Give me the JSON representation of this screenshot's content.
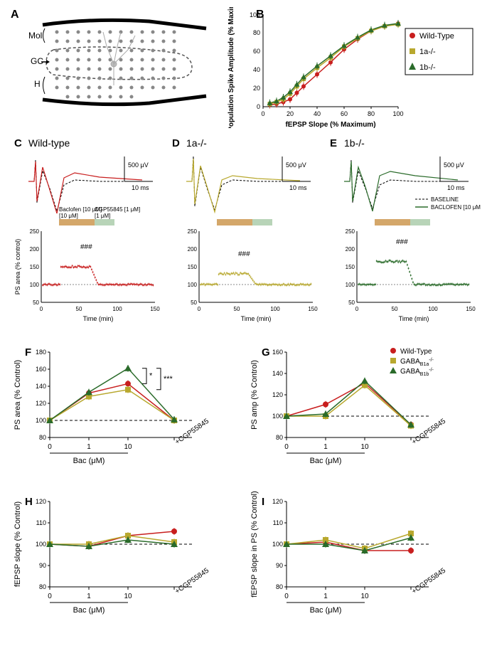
{
  "panelA": {
    "label": "A",
    "regions": [
      "Mol",
      "GC",
      "H"
    ]
  },
  "panelB": {
    "label": "B",
    "type": "scatter",
    "xlabel": "fEPSP Slope (% Maximum)",
    "ylabel": "Population Spike Amplitude (% Maximum)",
    "xlim": [
      0,
      100
    ],
    "ylim": [
      0,
      100
    ],
    "xtick_step": 20,
    "ytick_step": 20,
    "series": [
      {
        "name": "Wild-Type",
        "color": "#c81e1e",
        "marker": "circle",
        "data": [
          [
            5,
            2
          ],
          [
            10,
            3
          ],
          [
            15,
            5
          ],
          [
            20,
            8
          ],
          [
            25,
            15
          ],
          [
            30,
            22
          ],
          [
            40,
            35
          ],
          [
            50,
            48
          ],
          [
            60,
            62
          ],
          [
            70,
            73
          ],
          [
            80,
            82
          ],
          [
            90,
            87
          ],
          [
            100,
            90
          ]
        ]
      },
      {
        "name": "1a-/-",
        "color": "#b8a82e",
        "marker": "square",
        "data": [
          [
            5,
            3
          ],
          [
            10,
            5
          ],
          [
            15,
            8
          ],
          [
            20,
            14
          ],
          [
            25,
            22
          ],
          [
            30,
            30
          ],
          [
            40,
            42
          ],
          [
            50,
            53
          ],
          [
            60,
            65
          ],
          [
            70,
            74
          ],
          [
            80,
            82
          ],
          [
            90,
            87
          ],
          [
            100,
            89
          ]
        ]
      },
      {
        "name": "1b-/-",
        "color": "#2a6b2a",
        "marker": "triangle",
        "data": [
          [
            5,
            4
          ],
          [
            10,
            6
          ],
          [
            15,
            10
          ],
          [
            20,
            16
          ],
          [
            25,
            24
          ],
          [
            30,
            32
          ],
          [
            40,
            44
          ],
          [
            50,
            55
          ],
          [
            60,
            66
          ],
          [
            70,
            75
          ],
          [
            80,
            83
          ],
          [
            90,
            88
          ],
          [
            100,
            90
          ]
        ]
      }
    ]
  },
  "panelsCDE": {
    "C": {
      "label": "C",
      "title": "Wild-type",
      "color": "#c81e1e"
    },
    "D": {
      "label": "D",
      "title": "1a-/-",
      "color": "#b8a82e"
    },
    "E": {
      "label": "E",
      "title": "1b-/-",
      "color": "#2a6b2a"
    },
    "trace_legend": [
      "BASELINE",
      "BACLOFEN [10 μM]"
    ],
    "scale_v": "500 μV",
    "scale_t": "10 ms",
    "drug_labels": [
      "Baclofen [10 μM]",
      "CGP55845 [1 μM]"
    ],
    "drug_colors": [
      "#d4a76a",
      "#b8d4b8"
    ],
    "timecourse": {
      "xlabel": "Time (min)",
      "ylabel": "PS area (% control)",
      "xlim": [
        0,
        150
      ],
      "ylim": [
        50,
        250
      ],
      "xtick_step": 50,
      "ytick_step": 50,
      "sig_label": "###"
    }
  },
  "legendFGHI": {
    "series": [
      {
        "name": "Wild-Type",
        "color": "#c81e1e",
        "marker": "circle"
      },
      {
        "name": "GABA_B1a^-/-",
        "color": "#b8a82e",
        "marker": "square"
      },
      {
        "name": "GABA_B1b^-/-",
        "color": "#2a6b2a",
        "marker": "triangle"
      }
    ]
  },
  "xcats": [
    "0",
    "1",
    "10",
    "+CGP55845"
  ],
  "bac_label": "Bac (μM)",
  "panelF": {
    "label": "F",
    "ylabel": "PS area (% Control)",
    "ylim": [
      80,
      180
    ],
    "ytick_step": 20,
    "sig_labels": [
      "*",
      "***"
    ],
    "data": {
      "WT": [
        100,
        132,
        143,
        100
      ],
      "1a": [
        100,
        128,
        136,
        100
      ],
      "1b": [
        100,
        133,
        161,
        101
      ]
    }
  },
  "panelG": {
    "label": "G",
    "ylabel": "PS amp (% Control)",
    "ylim": [
      80,
      160
    ],
    "ytick_step": 20,
    "data": {
      "WT": [
        100,
        111,
        131,
        92
      ],
      "1a": [
        100,
        100,
        129,
        91
      ],
      "1b": [
        100,
        102,
        133,
        92
      ]
    }
  },
  "panelH": {
    "label": "H",
    "ylabel": "fEPSP slope (% Control)",
    "ylim": [
      80,
      120
    ],
    "ytick_step": 10,
    "data": {
      "WT": [
        100,
        99,
        104,
        106
      ],
      "1a": [
        100,
        100,
        104,
        101
      ],
      "1b": [
        100,
        99,
        102,
        100
      ]
    }
  },
  "panelI": {
    "label": "I",
    "ylabel": "fEPSP slope in PS (% Control)",
    "ylim": [
      80,
      120
    ],
    "ytick_step": 10,
    "data": {
      "WT": [
        100,
        101,
        97,
        97
      ],
      "1a": [
        100,
        102,
        98,
        105
      ],
      "1b": [
        100,
        100,
        97,
        103
      ]
    }
  },
  "colors": {
    "WT": "#c81e1e",
    "1a": "#b8a82e",
    "1b": "#2a6b2a"
  }
}
